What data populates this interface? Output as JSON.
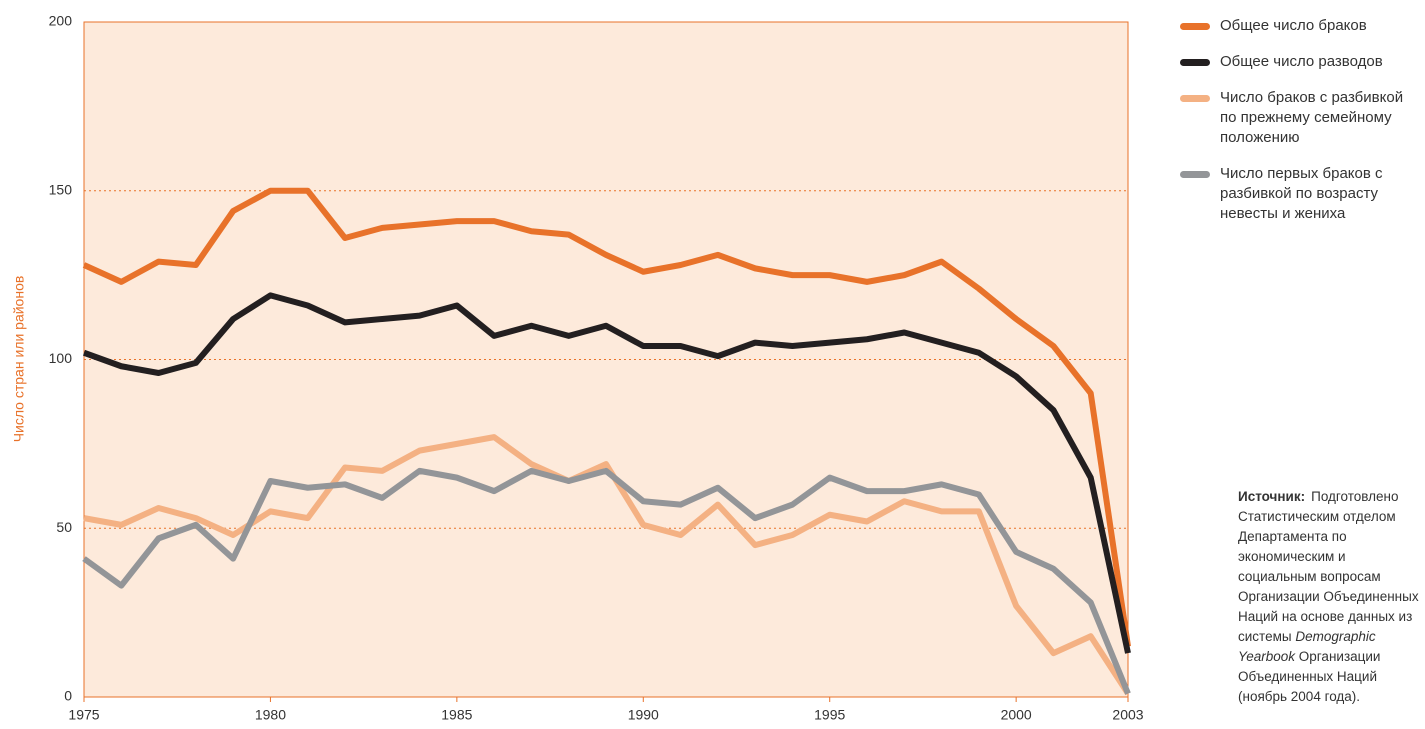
{
  "chart_data": {
    "type": "line",
    "y_label": "Число стран или районов",
    "x": [
      1975,
      1976,
      1977,
      1978,
      1979,
      1980,
      1981,
      1982,
      1983,
      1984,
      1985,
      1986,
      1987,
      1988,
      1989,
      1990,
      1991,
      1992,
      1993,
      1994,
      1995,
      1996,
      1997,
      1998,
      1999,
      2000,
      2001,
      2002,
      2003
    ],
    "series": [
      {
        "name": "Общее число браков",
        "color": "#e8722a",
        "values": [
          128,
          123,
          129,
          128,
          144,
          150,
          150,
          136,
          139,
          140,
          141,
          141,
          138,
          137,
          131,
          126,
          128,
          131,
          127,
          125,
          125,
          123,
          125,
          129,
          121,
          112,
          104,
          90,
          15
        ]
      },
      {
        "name": "Общее число разводов",
        "color": "#231f20",
        "values": [
          102,
          98,
          96,
          99,
          112,
          119,
          116,
          111,
          112,
          113,
          116,
          107,
          110,
          107,
          110,
          104,
          104,
          101,
          105,
          104,
          105,
          106,
          108,
          105,
          102,
          95,
          85,
          65,
          13
        ]
      },
      {
        "name": "Число браков с разбивкой по прежнему семейному положению",
        "color": "#f4b183",
        "values": [
          53,
          51,
          56,
          53,
          48,
          55,
          53,
          68,
          67,
          73,
          75,
          77,
          69,
          64,
          69,
          51,
          48,
          57,
          45,
          48,
          54,
          52,
          58,
          55,
          55,
          27,
          13,
          18,
          1
        ]
      },
      {
        "name": "Число первых браков с разбивкой по возрасту невесты и жениха",
        "color": "#939598",
        "values": [
          41,
          33,
          47,
          51,
          41,
          64,
          62,
          63,
          59,
          67,
          65,
          61,
          67,
          64,
          67,
          58,
          57,
          62,
          53,
          57,
          65,
          61,
          61,
          63,
          60,
          43,
          38,
          28,
          1
        ]
      }
    ],
    "xlim": [
      1975,
      2003
    ],
    "xticks": [
      1975,
      1980,
      1985,
      1990,
      1995,
      2000,
      2003
    ],
    "ylim": [
      0,
      200
    ],
    "yticks": [
      0,
      50,
      100,
      150,
      200
    ],
    "grid": true,
    "source": {
      "label": "Источник:",
      "parts": [
        "Подготовлено Статистическим отделом Департамента по экономическим и социальным вопросам Организации Объединенных Наций на основе данных из системы ",
        "Demographic Yearbook",
        " Организации Объединенных Наций (ноябрь 2004 года)."
      ]
    }
  }
}
